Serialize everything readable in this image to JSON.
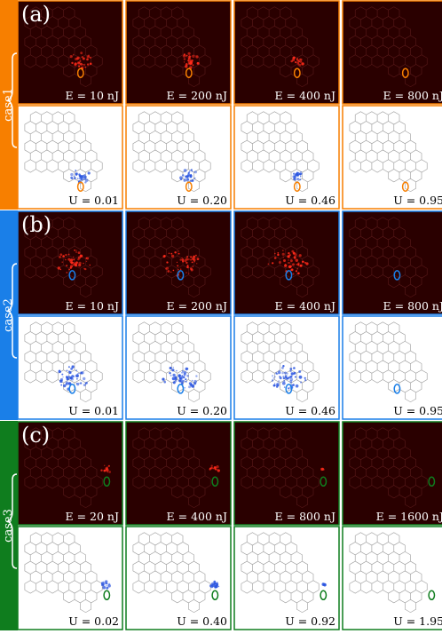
{
  "colors": {
    "case1": "#f77f00",
    "case2": "#1a7fe8",
    "case3": "#0f7d1e",
    "dark_panel": "#2a0000",
    "hex_dark": "#5a1a1a",
    "hex_light": "#9a9a9a",
    "emission": "#ff2a1a",
    "density": "#2a55e0"
  },
  "cases": [
    {
      "name": "case1",
      "tag": "(a)",
      "color_key": "case1",
      "energies": [
        "E = 10 nJ",
        "E = 200 nJ",
        "E = 400 nJ",
        "E = 800 nJ"
      ],
      "u_values": [
        "U = 0.01",
        "U = 0.20",
        "U = 0.46",
        "U = 0.95"
      ]
    },
    {
      "name": "case2",
      "tag": "(b)",
      "color_key": "case2",
      "energies": [
        "E = 10 nJ",
        "E = 200 nJ",
        "E = 400 nJ",
        "E = 800 nJ"
      ],
      "u_values": [
        "U = 0.01",
        "U = 0.20",
        "U = 0.46",
        "U = 0.95"
      ]
    },
    {
      "name": "case3",
      "tag": "(c)",
      "color_key": "case3",
      "energies": [
        "E = 20 nJ",
        "E = 400 nJ",
        "E = 800 nJ",
        "E = 1600 nJ"
      ],
      "u_values": [
        "U = 0.02",
        "U = 0.40",
        "U = 0.92",
        "U = 1.95"
      ]
    }
  ]
}
